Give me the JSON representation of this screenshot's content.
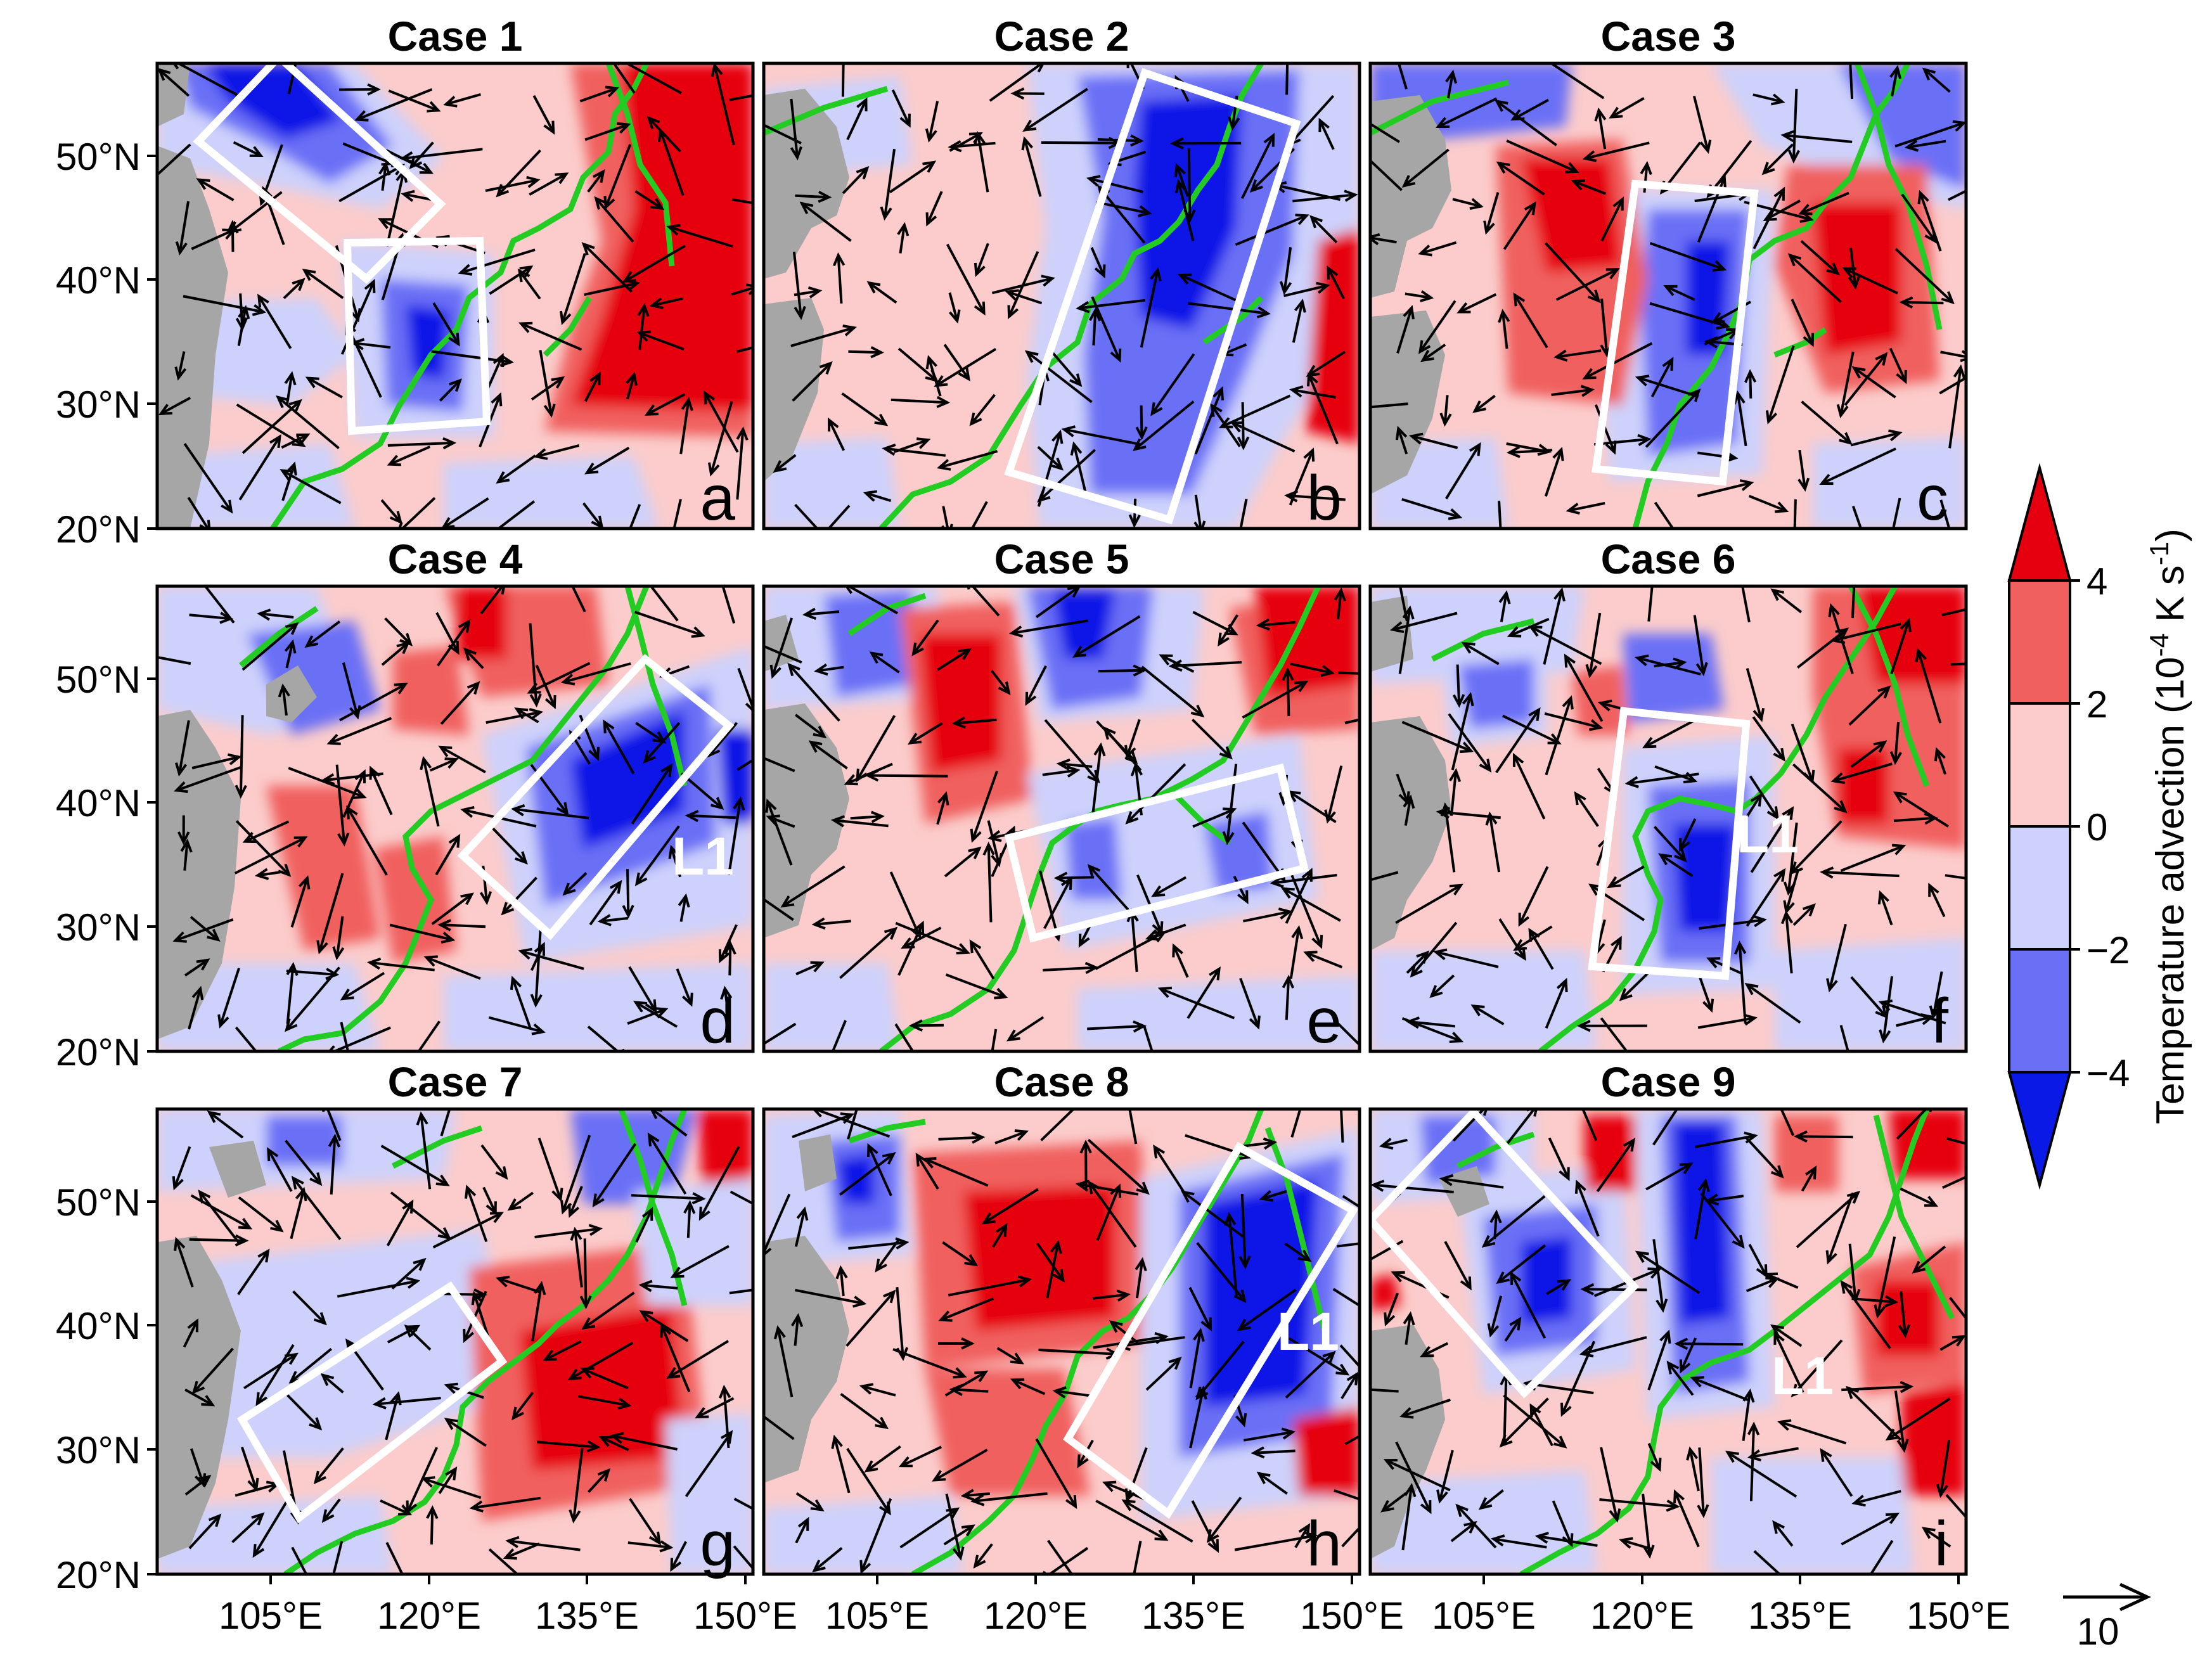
{
  "panels": [
    {
      "id": "a",
      "title": "Case  1",
      "letter": "a",
      "l1": ""
    },
    {
      "id": "b",
      "title": "Case  2",
      "letter": "b",
      "l1": ""
    },
    {
      "id": "c",
      "title": "Case  3",
      "letter": "c",
      "l1": ""
    },
    {
      "id": "d",
      "title": "Case  4",
      "letter": "d",
      "l1": "L1"
    },
    {
      "id": "e",
      "title": "Case  5",
      "letter": "e",
      "l1": ""
    },
    {
      "id": "f",
      "title": "Case  6",
      "letter": "f",
      "l1": "L1"
    },
    {
      "id": "g",
      "title": "Case  7",
      "letter": "g",
      "l1": ""
    },
    {
      "id": "h",
      "title": "Case  8",
      "letter": "h",
      "l1": "L1"
    },
    {
      "id": "i",
      "title": "Case  9",
      "letter": "i",
      "l1": "L1"
    }
  ],
  "lat_ticks": [
    "50°N",
    "40°N",
    "30°N",
    "20°N"
  ],
  "lon_ticks": [
    "105°E",
    "120°E",
    "135°E",
    "150°E"
  ],
  "colorbar": {
    "title": "Temperature  advection  (10",
    "title_exp": "-4",
    "title_units": " K s",
    "title_units_exp": "-1",
    "title_close": ")",
    "levels": [
      "4",
      "2",
      "0",
      "−2",
      "−4"
    ],
    "colors": [
      "#e6000f",
      "#f0605f",
      "#fbcccb",
      "#cdd1fb",
      "#6a70f6",
      "#0a19e6"
    ]
  },
  "reference_vector": {
    "label": "10"
  },
  "colors": {
    "land": "#a6a6a6",
    "coast": "#22cc22",
    "box": "#ffffff"
  }
}
